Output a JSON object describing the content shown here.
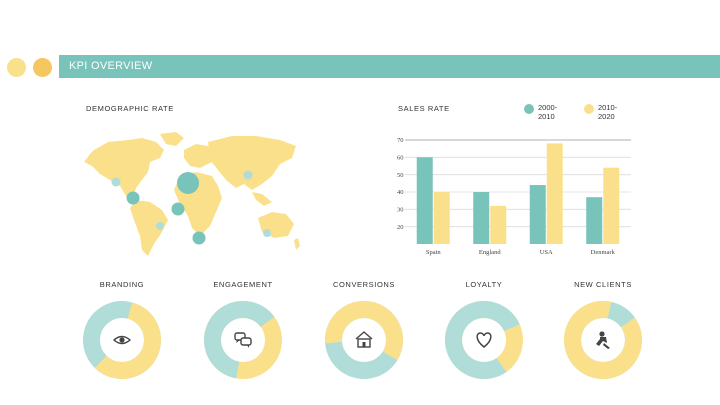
{
  "header": {
    "title": "KPI OVERVIEW"
  },
  "colors": {
    "teal": "#78C3BA",
    "light_teal": "#B0DDD8",
    "yellow": "#FBE08C",
    "orange": "#F6C660"
  },
  "demographic": {
    "title": "DEMOGRAPHIC RATE",
    "markers": [
      {
        "region": "north-america-west",
        "color": "teal-light"
      },
      {
        "region": "north-america-east",
        "color": "teal"
      },
      {
        "region": "western-europe",
        "color": "teal",
        "large": true
      },
      {
        "region": "west-africa",
        "color": "teal"
      },
      {
        "region": "south-america",
        "color": "teal-light"
      },
      {
        "region": "south-atlantic",
        "color": "teal"
      },
      {
        "region": "russia",
        "color": "teal-light"
      },
      {
        "region": "australia",
        "color": "teal-light"
      }
    ]
  },
  "sales": {
    "title": "SALES RATE",
    "legend": [
      {
        "label": "2000-2010",
        "line1": "2000-",
        "line2": "2010",
        "color": "#78C3BA"
      },
      {
        "label": "2010-2020",
        "line1": "2010-",
        "line2": "2020",
        "color": "#FBE08C"
      }
    ]
  },
  "chart_data": {
    "type": "bar",
    "title": "SALES RATE",
    "categories": [
      "Spain",
      "England",
      "USA",
      "Denmark"
    ],
    "series": [
      {
        "name": "2000-2010",
        "color": "#78C3BA",
        "values": [
          60,
          40,
          44,
          37
        ]
      },
      {
        "name": "2010-2020",
        "color": "#FBE08C",
        "values": [
          40,
          32,
          68,
          54
        ]
      }
    ],
    "yticks": [
      20,
      30,
      40,
      50,
      60,
      70
    ],
    "ylim": [
      10,
      70
    ],
    "grid": true,
    "legend": "top-right"
  },
  "kpis": [
    {
      "label": "BRANDING",
      "icon": "eye-icon",
      "share": 0.58,
      "primary": "#FBE08C",
      "secondary": "#B0DDD8",
      "start": -75
    },
    {
      "label": "ENGAGEMENT",
      "icon": "chat-bubbles-icon",
      "share": 0.62,
      "primary": "#B0DDD8",
      "secondary": "#FBE08C",
      "start": 100
    },
    {
      "label": "CONVERSIONS",
      "icon": "house-icon",
      "share": 0.6,
      "primary": "#FBE08C",
      "secondary": "#B0DDD8",
      "start": 175
    },
    {
      "label": "LOYALTY",
      "icon": "heart-icon",
      "share": 0.78,
      "primary": "#B0DDD8",
      "secondary": "#FBE08C",
      "start": 55
    },
    {
      "label": "NEW CLIENTS",
      "icon": "handshake-icon",
      "share": 0.88,
      "primary": "#FBE08C",
      "secondary": "#B0DDD8",
      "start": -35
    }
  ]
}
